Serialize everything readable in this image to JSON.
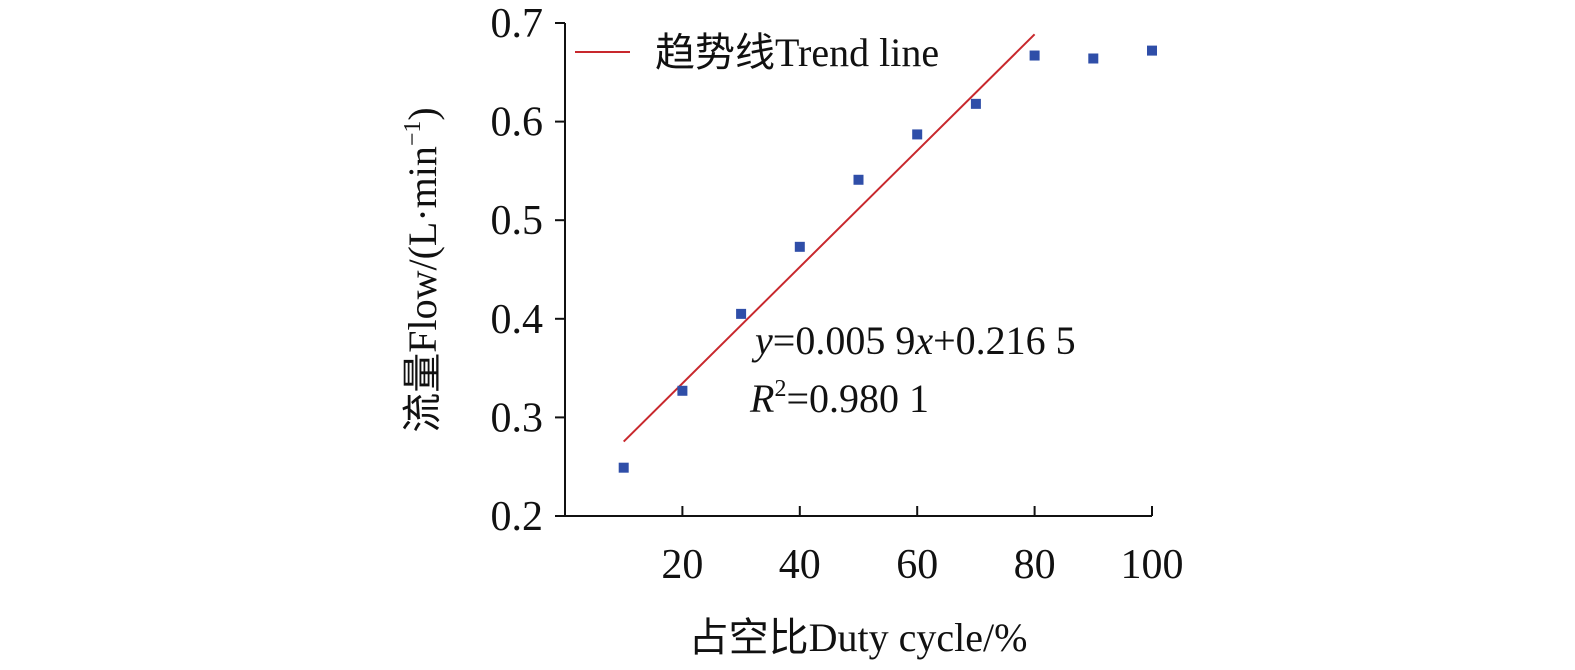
{
  "chart_data": {
    "type": "scatter",
    "xlabel": "占空比Duty cycle/%",
    "ylabel_main": "流量Flow/(L·min",
    "ylabel_exp": "−1",
    "ylabel_close": ")",
    "xlim": [
      0,
      100
    ],
    "ylim": [
      0.2,
      0.7
    ],
    "x_ticks": [
      "20",
      "40",
      "60",
      "80",
      "100"
    ],
    "y_ticks": [
      "0.2",
      "0.3",
      "0.4",
      "0.5",
      "0.6",
      "0.7"
    ],
    "grid": false,
    "legend_position": "top",
    "series": [
      {
        "x": [
          10,
          20,
          30,
          40,
          50,
          60,
          70,
          80,
          90,
          100
        ],
        "y": [
          0.249,
          0.327,
          0.405,
          0.473,
          0.541,
          0.587,
          0.618,
          0.667,
          0.664,
          0.672
        ],
        "marker": "square",
        "color": "#2f4ea8"
      }
    ],
    "trendline": {
      "name": "趋势线Trend line",
      "slope": 0.0059,
      "intercept": 0.2165,
      "x_range": [
        10,
        80
      ],
      "color": "#c8282d"
    },
    "equation": {
      "y_var": "y",
      "y_text": "=0.005 9",
      "x_var": "x",
      "x_text": "+0.216 5",
      "r_var": "R",
      "r_exp": "2",
      "r_text": "=0.980 1"
    }
  }
}
